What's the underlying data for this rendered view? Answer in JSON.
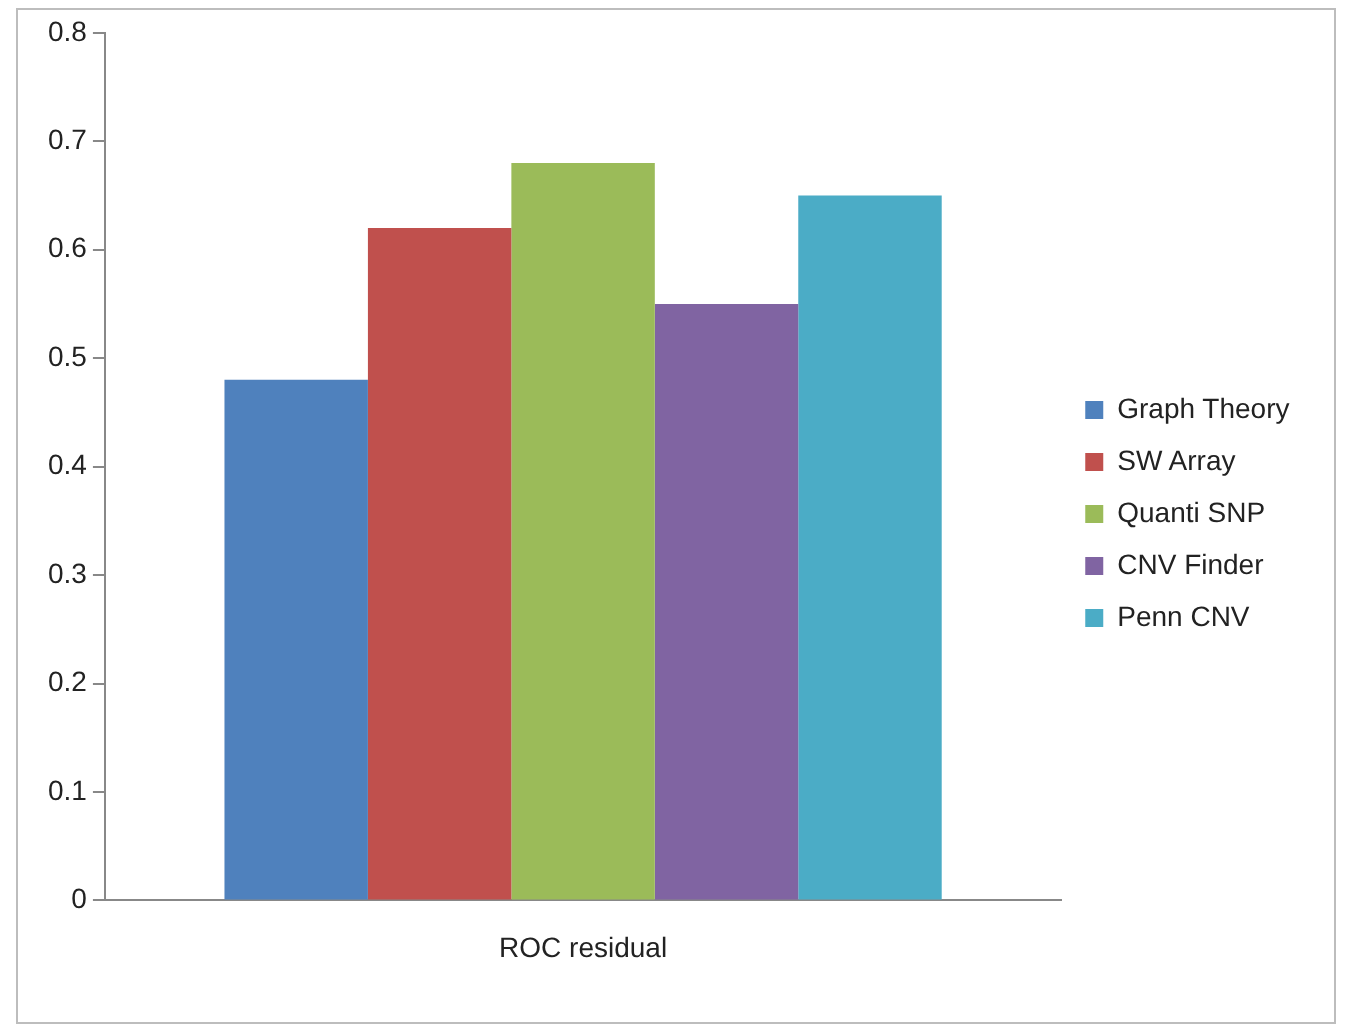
{
  "chart_data": {
    "type": "bar",
    "categories": [
      "ROC residual"
    ],
    "series": [
      {
        "name": "Graph Theory",
        "color": "#4f81bd",
        "values": [
          0.48
        ]
      },
      {
        "name": "SW Array",
        "color": "#c0504d",
        "values": [
          0.62
        ]
      },
      {
        "name": "Quanti SNP",
        "color": "#9bbb59",
        "values": [
          0.68
        ]
      },
      {
        "name": "CNV Finder",
        "color": "#8064a2",
        "values": [
          0.55
        ]
      },
      {
        "name": "Penn CNV",
        "color": "#4bacc6",
        "values": [
          0.65
        ]
      }
    ],
    "ylim": [
      0,
      0.8
    ],
    "yticks": [
      0,
      0.1,
      0.2,
      0.3,
      0.4,
      0.5,
      0.6,
      0.7,
      0.8
    ],
    "grid": false,
    "legend": "right"
  }
}
